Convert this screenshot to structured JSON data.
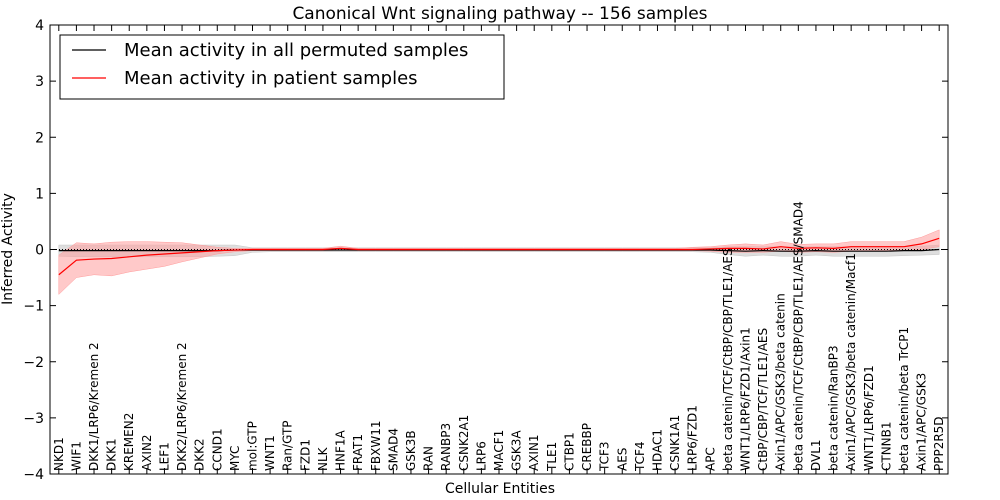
{
  "chart_data": {
    "type": "line",
    "title": "Canonical Wnt signaling pathway -- 156 samples",
    "xlabel": "Cellular Entities",
    "ylabel": "Inferred Activity",
    "ylim": [
      -4,
      4
    ],
    "yticks": [
      "−4",
      "−3",
      "−2",
      "−1",
      "0",
      "1",
      "2",
      "3",
      "4"
    ],
    "categories": [
      "NKD1",
      "WIF1",
      "DKK1/LRP6/Kremen 2",
      "DKK1",
      "KREMEN2",
      "AXIN2",
      "LEF1",
      "DKK2/LRP6/Kremen 2",
      "DKK2",
      "CCND1",
      "MYC",
      "mol:GTP",
      "WNT1",
      "Ran/GTP",
      "FZD1",
      "NLK",
      "HNF1A",
      "FRAT1",
      "FBXW11",
      "SMAD4",
      "GSK3B",
      "RAN",
      "RANBP3",
      "CSNK2A1",
      "LRP6",
      "MACF1",
      "GSK3A",
      "AXIN1",
      "TLE1",
      "CTBP1",
      "CREBBP",
      "TCF3",
      "AES",
      "TCF4",
      "HDAC1",
      "CSNK1A1",
      "LRP6/FZD1",
      "APC",
      "beta catenin/TCF/CtBP/CBP/TLE1/AES",
      "WNT1/LRP6/FZD1/Axin1",
      "CtBP/CBP/TCF/TLE1/AES",
      "Axin1/APC/GSK3/beta catenin",
      "beta catenin/TCF/CtBP/CBP/TLE1/AES/SMAD4",
      "DVL1",
      "beta catenin/RanBP3",
      "Axin1/APC/GSK3/beta catenin/Macf1",
      "WNT1/LRP6/FZD1",
      "CTNNB1",
      "beta catenin/beta TrCP1",
      "Axin1/APC/GSK3",
      "PPP2R5D"
    ],
    "series": [
      {
        "name": "Mean activity in all permuted samples",
        "color": "#000000",
        "band_color": "#c8c8c8",
        "values": [
          -0.02,
          -0.02,
          -0.02,
          -0.02,
          -0.02,
          -0.02,
          -0.02,
          -0.02,
          -0.02,
          -0.02,
          -0.01,
          -0.01,
          -0.01,
          -0.01,
          -0.01,
          -0.01,
          -0.01,
          -0.01,
          -0.01,
          -0.01,
          -0.01,
          -0.01,
          -0.01,
          -0.01,
          -0.01,
          -0.01,
          -0.01,
          -0.01,
          -0.01,
          -0.01,
          -0.01,
          -0.01,
          -0.01,
          -0.01,
          -0.01,
          -0.01,
          -0.01,
          -0.01,
          -0.02,
          -0.03,
          -0.02,
          -0.03,
          -0.03,
          -0.02,
          -0.03,
          -0.03,
          -0.03,
          -0.03,
          -0.02,
          -0.02,
          0.0
        ],
        "lower": [
          -0.12,
          -0.13,
          -0.13,
          -0.13,
          -0.13,
          -0.13,
          -0.13,
          -0.13,
          -0.13,
          -0.12,
          -0.11,
          -0.05,
          -0.04,
          -0.04,
          -0.04,
          -0.04,
          -0.04,
          -0.04,
          -0.04,
          -0.04,
          -0.04,
          -0.04,
          -0.04,
          -0.04,
          -0.04,
          -0.04,
          -0.04,
          -0.04,
          -0.04,
          -0.04,
          -0.04,
          -0.04,
          -0.04,
          -0.04,
          -0.04,
          -0.04,
          -0.04,
          -0.05,
          -0.09,
          -0.12,
          -0.1,
          -0.12,
          -0.12,
          -0.1,
          -0.12,
          -0.12,
          -0.12,
          -0.12,
          -0.11,
          -0.1,
          -0.09
        ],
        "upper": [
          0.08,
          0.08,
          0.08,
          0.08,
          0.08,
          0.08,
          0.08,
          0.08,
          0.08,
          0.08,
          0.08,
          0.03,
          0.03,
          0.03,
          0.03,
          0.03,
          0.03,
          0.03,
          0.03,
          0.03,
          0.03,
          0.03,
          0.03,
          0.03,
          0.03,
          0.03,
          0.03,
          0.03,
          0.03,
          0.03,
          0.03,
          0.03,
          0.03,
          0.03,
          0.03,
          0.03,
          0.03,
          0.03,
          0.05,
          0.05,
          0.05,
          0.05,
          0.05,
          0.05,
          0.05,
          0.05,
          0.05,
          0.05,
          0.05,
          0.06,
          0.08
        ]
      },
      {
        "name": "Mean activity in patient samples",
        "color": "#ff0000",
        "band_color": "#ff9c9c",
        "values": [
          -0.45,
          -0.19,
          -0.17,
          -0.16,
          -0.13,
          -0.1,
          -0.08,
          -0.06,
          -0.04,
          -0.02,
          -0.01,
          0.0,
          0.0,
          0.0,
          0.0,
          0.0,
          0.02,
          0.0,
          0.0,
          0.0,
          0.0,
          0.0,
          0.0,
          0.0,
          0.0,
          0.0,
          0.0,
          0.0,
          0.0,
          0.0,
          0.0,
          0.0,
          0.0,
          0.0,
          0.0,
          0.0,
          0.0,
          0.01,
          0.02,
          0.02,
          0.01,
          0.05,
          0.02,
          0.03,
          0.02,
          0.05,
          0.05,
          0.05,
          0.05,
          0.1,
          0.2
        ],
        "lower": [
          -0.8,
          -0.5,
          -0.45,
          -0.47,
          -0.4,
          -0.35,
          -0.3,
          -0.22,
          -0.15,
          -0.08,
          -0.04,
          -0.02,
          -0.02,
          -0.02,
          -0.02,
          -0.02,
          -0.01,
          -0.02,
          -0.02,
          -0.02,
          -0.02,
          -0.02,
          -0.02,
          -0.02,
          -0.02,
          -0.02,
          -0.02,
          -0.02,
          -0.02,
          -0.02,
          -0.02,
          -0.02,
          -0.02,
          -0.02,
          -0.02,
          -0.02,
          -0.02,
          -0.03,
          -0.05,
          -0.05,
          -0.05,
          -0.03,
          -0.05,
          -0.04,
          -0.05,
          -0.03,
          -0.02,
          -0.02,
          -0.02,
          0.0,
          0.05
        ],
        "upper": [
          -0.1,
          0.12,
          0.1,
          0.13,
          0.14,
          0.14,
          0.13,
          0.12,
          0.08,
          0.04,
          0.02,
          0.02,
          0.02,
          0.02,
          0.02,
          0.02,
          0.06,
          0.02,
          0.02,
          0.02,
          0.02,
          0.02,
          0.02,
          0.02,
          0.02,
          0.02,
          0.02,
          0.02,
          0.02,
          0.02,
          0.02,
          0.02,
          0.02,
          0.02,
          0.02,
          0.02,
          0.04,
          0.05,
          0.08,
          0.1,
          0.08,
          0.14,
          0.09,
          0.1,
          0.1,
          0.14,
          0.14,
          0.14,
          0.14,
          0.22,
          0.35
        ]
      }
    ],
    "legend_position": "top-left",
    "grid": false
  }
}
